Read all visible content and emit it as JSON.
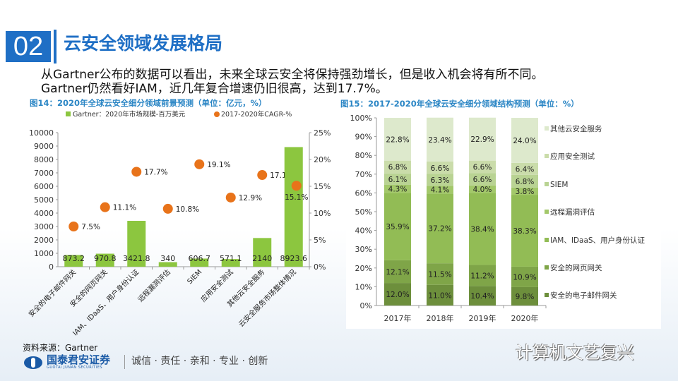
{
  "slide": {
    "number": "02",
    "title": "云安全领域发展格局",
    "body": [
      "从Gartner公布的数据可以看出，未来全球云安全将保持强劲增长，但是收入机会将有所不同。",
      "Gartner仍然看好IAM，近几年复合增速仍旧很高，达到17.7%。"
    ],
    "source": "资料来源：Gartner",
    "logo_name": "国泰君安证券",
    "logo_en": "GUOTAI JUNAN SECURITIES",
    "slogan": "诚信 · 责任 · 亲和 · 专业 · 创新",
    "watermark": "计算机文艺复兴"
  },
  "chart_data": [
    {
      "type": "bar",
      "title": "图14：2020年全球云安全细分领域前景预测（单位：亿元，%）",
      "categories": [
        "安全的电子邮件网关",
        "安全的网页网关",
        "IAM、IDaaS、用户身份认证",
        "远程漏洞评估",
        "SIEM",
        "应用安全测试",
        "其他云安全服务",
        "云安全服务市场整体情况"
      ],
      "series": [
        {
          "name": "Gartner：2020年市场规模-百万美元",
          "type": "bar",
          "axis": "left",
          "color": "#8cc63f",
          "values": [
            873.2,
            970.8,
            3421.8,
            340,
            606.7,
            571.1,
            2140,
            8923.6
          ],
          "labels": [
            "873.2",
            "970.8",
            "3421.8",
            "340",
            "606.7",
            "571.1",
            "2140",
            "8923.6"
          ]
        },
        {
          "name": "2017-2020年CAGR-%",
          "type": "scatter",
          "axis": "right",
          "color": "#e8731a",
          "values": [
            7.5,
            11.1,
            17.7,
            10.8,
            19.1,
            12.9,
            17.1,
            15.1
          ],
          "labels": [
            "7.5%",
            "11.1%",
            "17.7%",
            "10.8%",
            "19.1%",
            "12.9%",
            "17.1%",
            "15.1%"
          ]
        }
      ],
      "ylim": [
        0,
        10000
      ],
      "yticks": [
        "0",
        "1000",
        "2000",
        "3000",
        "4000",
        "5000",
        "6000",
        "7000",
        "8000",
        "9000",
        "10000"
      ],
      "y2lim": [
        0,
        25
      ],
      "y2ticks": [
        "0%",
        "5%",
        "10%",
        "15%",
        "20%",
        "25%"
      ],
      "legend": "top",
      "grid": false
    },
    {
      "type": "bar",
      "stacked": true,
      "title": "图15：2017-2020年全球云安全细分领域结构预测（单位：%）",
      "categories": [
        "2017年",
        "2018年",
        "2019年",
        "2020年"
      ],
      "series": [
        {
          "name": "安全的电子邮件网关",
          "color": "#6d8f3c",
          "values": [
            12.0,
            11.0,
            10.4,
            9.8
          ],
          "labels": [
            "12.0%",
            "11.0%",
            "10.4%",
            "9.8%"
          ]
        },
        {
          "name": "安全的网页网关",
          "color": "#7fa548",
          "values": [
            12.1,
            11.5,
            11.2,
            10.9
          ],
          "labels": [
            "12.1%",
            "11.5%",
            "11.2%",
            "10.9%"
          ]
        },
        {
          "name": "IAM、IDaaS、用户身份认证",
          "color": "#92bc55",
          "values": [
            35.9,
            37.2,
            38.4,
            38.3
          ],
          "labels": [
            "35.9%",
            "37.2%",
            "38.4%",
            "38.3%"
          ]
        },
        {
          "name": "远程漏洞评估",
          "color": "#a3c86a",
          "values": [
            4.3,
            4.1,
            4.0,
            3.8
          ],
          "labels": [
            "4.3%",
            "4.1%",
            "4.0%",
            "3.8%"
          ]
        },
        {
          "name": "SIEM",
          "color": "#b9d393",
          "values": [
            6.1,
            6.3,
            6.6,
            6.8
          ],
          "labels": [
            "6.1%",
            "6.3%",
            "6.6%",
            "6.8%"
          ]
        },
        {
          "name": "应用安全测试",
          "color": "#cadcaa",
          "values": [
            6.8,
            6.6,
            6.6,
            6.4
          ],
          "labels": [
            "6.8%",
            "6.6%",
            "6.6%",
            "6.4%"
          ]
        },
        {
          "name": "其他云安全服务",
          "color": "#dde9cc",
          "values": [
            22.8,
            23.4,
            22.9,
            24.0
          ],
          "labels": [
            "22.8%",
            "23.4%",
            "22.9%",
            "24.0%"
          ]
        }
      ],
      "ylim": [
        0,
        100
      ],
      "yticks": [
        "0%",
        "10%",
        "20%",
        "30%",
        "40%",
        "50%",
        "60%",
        "70%",
        "80%",
        "90%",
        "100%"
      ],
      "legend": "right",
      "grid": false
    }
  ]
}
